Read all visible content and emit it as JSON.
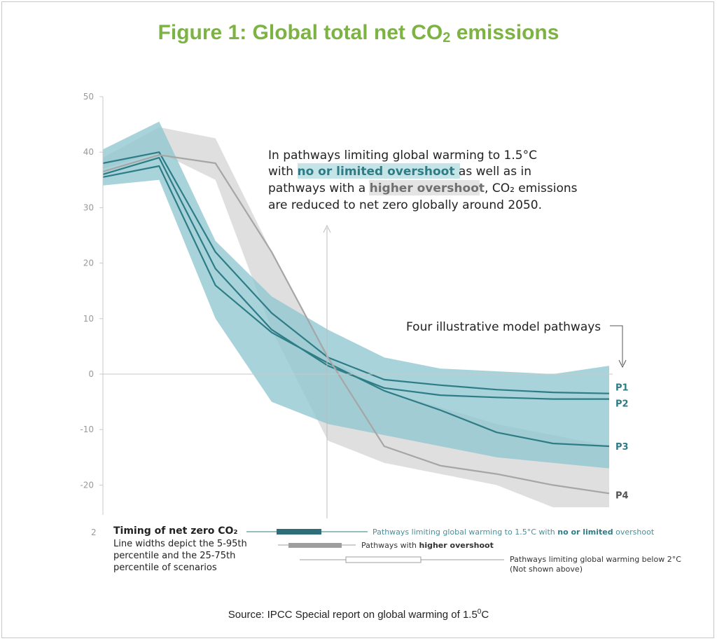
{
  "title": {
    "prefix": "Figure 1: Global total net CO",
    "sub": "2",
    "suffix": " emissions"
  },
  "source": {
    "prefix": "Source: IPCC Special report on global warming of 1.5",
    "sup": "0",
    "suffix": "C"
  },
  "annotation": {
    "l1": "In pathways limiting global warming to 1.5°C",
    "l2a": "with ",
    "l2b": "no or limited overshoot",
    "l2c": " as well as in",
    "l3a": "pathways with a ",
    "l3b": "higher overshoot",
    "l3c": ", CO₂ emissions",
    "l4": "are reduced to net zero globally around 2050."
  },
  "pathways_label": "Four illustrative model pathways",
  "colors": {
    "teal_band": "#8fc6cf",
    "teal_line": "#2e7c86",
    "gray_band": "#d9d9d9",
    "gray_line": "#a6a6a6",
    "green_title": "#7cb342"
  },
  "timing": {
    "heading": "Timing of net zero CO₂",
    "desc1": "Line widths depict the 5-95th",
    "desc2": "percentile and the 25-75th",
    "desc3": "percentile of scenarios",
    "axis_stub": "2",
    "rows": [
      {
        "text_a": "Pathways limiting global warming to 1.5°C with ",
        "text_b": "no or limited",
        "text_c": " overshoot",
        "whisker": [
          2035,
          2070
        ],
        "box": [
          2045,
          2055
        ]
      },
      {
        "text_a": "Pathways with ",
        "text_b": "higher overshoot",
        "text_c": "",
        "whisker": [
          2045,
          2060
        ],
        "box": [
          2048,
          2058
        ]
      },
      {
        "text_a": "Pathways limiting global warming below 2°C",
        "text_b": "",
        "text_c": "",
        "text_d": "(Not shown above)",
        "whisker": [
          2055,
          2100
        ],
        "box": [
          2065,
          2085
        ]
      }
    ]
  },
  "chart_data": {
    "type": "line",
    "xlabel": "",
    "ylabel": "",
    "ylim": [
      -24,
      50
    ],
    "xlim": [
      2010,
      2100
    ],
    "yticks": [
      50,
      40,
      30,
      20,
      10,
      0,
      -10,
      -20
    ],
    "grid": false,
    "x": [
      2010,
      2020,
      2030,
      2040,
      2050,
      2060,
      2070,
      2080,
      2090,
      2100
    ],
    "bands": [
      {
        "name": "",
        "color": "#8fc6cf",
        "upper": [
          40.5,
          45.5,
          24,
          14,
          8,
          3,
          1,
          0.5,
          0,
          1.5
        ],
        "lower": [
          34,
          35,
          10,
          -5,
          -9,
          -11,
          -13,
          -15,
          -16,
          -17
        ]
      },
      {
        "name": "",
        "color": "#d9d9d9",
        "upper": [
          39,
          44.5,
          42.5,
          22,
          3,
          -3,
          -6,
          -9,
          -11,
          -13
        ],
        "lower": [
          37,
          40,
          35,
          8,
          -12,
          -16,
          -18,
          -20,
          -24,
          -24
        ]
      }
    ],
    "series": [
      {
        "name": "P1",
        "values": [
          38,
          40,
          22,
          11,
          3,
          -1,
          -2,
          -2.8,
          -3.3,
          -3.5
        ]
      },
      {
        "name": "P2",
        "values": [
          36,
          39,
          19,
          8,
          1.5,
          -2.5,
          -3.8,
          -4.2,
          -4.5,
          -4.5
        ]
      },
      {
        "name": "P3",
        "values": [
          35.5,
          37.5,
          16,
          7.5,
          2,
          -3,
          -6.5,
          -10.5,
          -12.5,
          -13
        ]
      },
      {
        "name": "P4",
        "values": [
          36.5,
          39.5,
          38,
          22,
          3,
          -13,
          -16.5,
          -18,
          -20,
          -21.5
        ]
      }
    ]
  }
}
